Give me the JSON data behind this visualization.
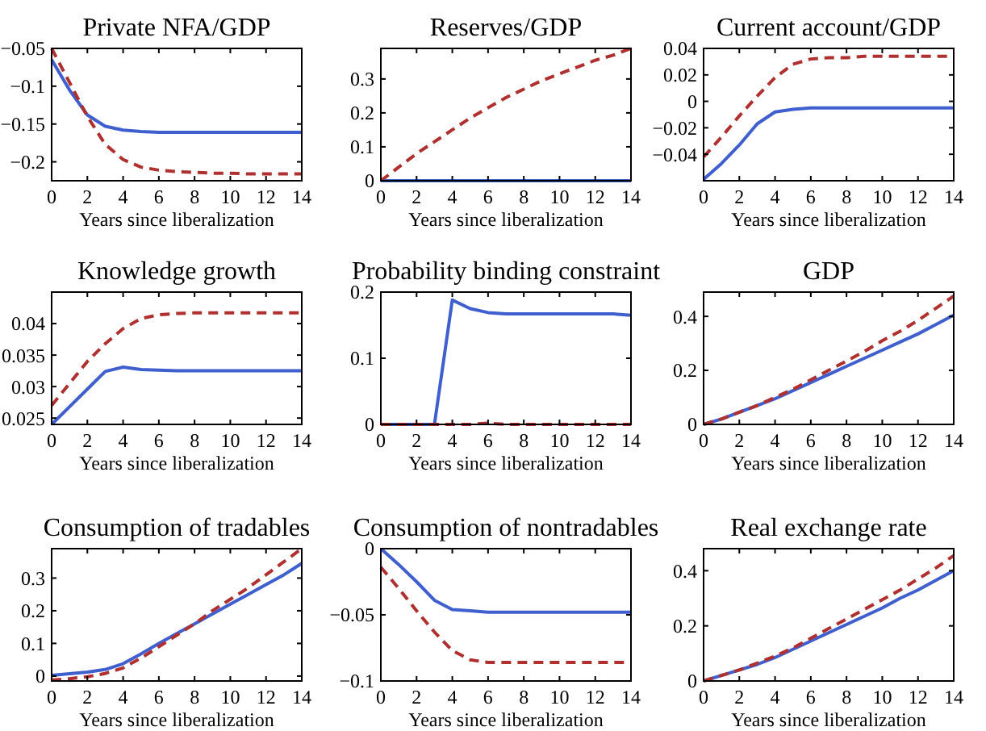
{
  "chart_data": [
    {
      "type": "line",
      "title": "Private NFA/GDP",
      "xlabel": "Years since liberalization",
      "x": [
        0,
        1,
        2,
        3,
        4,
        5,
        6,
        7,
        8,
        9,
        10,
        11,
        12,
        13,
        14
      ],
      "xlim": [
        0,
        14
      ],
      "xticks": [
        0,
        2,
        4,
        6,
        8,
        10,
        12,
        14
      ],
      "ylim": [
        -0.225,
        -0.05
      ],
      "yticks": [
        -0.2,
        -0.15,
        -0.1,
        -0.05
      ],
      "grid": false,
      "series": [
        {
          "color": "#3f5fcf",
          "line_style": "solid",
          "values": [
            -0.065,
            -0.105,
            -0.138,
            -0.153,
            -0.158,
            -0.16,
            -0.161,
            -0.161,
            -0.161,
            -0.161,
            -0.161,
            -0.161,
            -0.161,
            -0.161,
            -0.161
          ]
        },
        {
          "color": "#b03030",
          "line_style": "dashed",
          "values": [
            -0.05,
            -0.095,
            -0.14,
            -0.177,
            -0.197,
            -0.207,
            -0.211,
            -0.213,
            -0.214,
            -0.215,
            -0.215,
            -0.216,
            -0.216,
            -0.216,
            -0.216
          ]
        }
      ]
    },
    {
      "type": "line",
      "title": "Reserves/GDP",
      "xlabel": "Years since liberalization",
      "x": [
        0,
        1,
        2,
        3,
        4,
        5,
        6,
        7,
        8,
        9,
        10,
        11,
        12,
        13,
        14
      ],
      "xlim": [
        0,
        14
      ],
      "xticks": [
        0,
        2,
        4,
        6,
        8,
        10,
        12,
        14
      ],
      "ylim": [
        0,
        0.39
      ],
      "yticks": [
        0,
        0.1,
        0.2,
        0.3
      ],
      "grid": false,
      "series": [
        {
          "color": "#3f5fcf",
          "line_style": "solid",
          "values": [
            0,
            0,
            0,
            0,
            0,
            0,
            0,
            0,
            0,
            0,
            0,
            0,
            0,
            0,
            0
          ]
        },
        {
          "color": "#b03030",
          "line_style": "dashed",
          "values": [
            0,
            0.04,
            0.08,
            0.115,
            0.15,
            0.185,
            0.215,
            0.245,
            0.27,
            0.295,
            0.315,
            0.335,
            0.355,
            0.37,
            0.39
          ]
        }
      ]
    },
    {
      "type": "line",
      "title": "Current account/GDP",
      "xlabel": "Years since liberalization",
      "x": [
        0,
        1,
        2,
        3,
        4,
        5,
        6,
        7,
        8,
        9,
        10,
        11,
        12,
        13,
        14
      ],
      "xlim": [
        0,
        14
      ],
      "xticks": [
        0,
        2,
        4,
        6,
        8,
        10,
        12,
        14
      ],
      "ylim": [
        -0.06,
        0.04
      ],
      "yticks": [
        -0.04,
        -0.02,
        0,
        0.02,
        0.04
      ],
      "grid": false,
      "series": [
        {
          "color": "#3f5fcf",
          "line_style": "solid",
          "values": [
            -0.059,
            -0.047,
            -0.033,
            -0.017,
            -0.008,
            -0.006,
            -0.005,
            -0.005,
            -0.005,
            -0.005,
            -0.005,
            -0.005,
            -0.005,
            -0.005,
            -0.005
          ]
        },
        {
          "color": "#b03030",
          "line_style": "dashed",
          "values": [
            -0.042,
            -0.027,
            -0.011,
            0.004,
            0.018,
            0.028,
            0.032,
            0.033,
            0.033,
            0.034,
            0.034,
            0.034,
            0.034,
            0.034,
            0.034
          ]
        }
      ]
    },
    {
      "type": "line",
      "title": "Knowledge growth",
      "xlabel": "Years since liberalization",
      "x": [
        0,
        1,
        2,
        3,
        4,
        5,
        6,
        7,
        8,
        9,
        10,
        11,
        12,
        13,
        14
      ],
      "xlim": [
        0,
        14
      ],
      "xticks": [
        0,
        2,
        4,
        6,
        8,
        10,
        12,
        14
      ],
      "ylim": [
        0.024,
        0.045
      ],
      "yticks": [
        0.025,
        0.03,
        0.035,
        0.04
      ],
      "grid": false,
      "series": [
        {
          "color": "#3f5fcf",
          "line_style": "solid",
          "values": [
            0.024,
            0.0268,
            0.0296,
            0.0324,
            0.0331,
            0.0327,
            0.0326,
            0.0325,
            0.0325,
            0.0325,
            0.0325,
            0.0325,
            0.0325,
            0.0325,
            0.0325
          ]
        },
        {
          "color": "#b03030",
          "line_style": "dashed",
          "values": [
            0.027,
            0.0305,
            0.034,
            0.0368,
            0.0392,
            0.0408,
            0.0414,
            0.0416,
            0.0417,
            0.0417,
            0.0417,
            0.0417,
            0.0417,
            0.0417,
            0.0417
          ]
        }
      ]
    },
    {
      "type": "line",
      "title": "Probability binding constraint",
      "xlabel": "Years since liberalization",
      "x": [
        0,
        1,
        2,
        3,
        4,
        5,
        6,
        7,
        8,
        9,
        10,
        11,
        12,
        13,
        14
      ],
      "xlim": [
        0,
        14
      ],
      "xticks": [
        0,
        2,
        4,
        6,
        8,
        10,
        12,
        14
      ],
      "ylim": [
        0,
        0.2
      ],
      "yticks": [
        0,
        0.1,
        0.2
      ],
      "grid": false,
      "series": [
        {
          "color": "#3f5fcf",
          "line_style": "solid",
          "values": [
            0,
            0,
            0,
            0,
            0.188,
            0.175,
            0.169,
            0.167,
            0.167,
            0.167,
            0.167,
            0.167,
            0.167,
            0.167,
            0.165
          ]
        },
        {
          "color": "#b03030",
          "line_style": "dashed",
          "values": [
            0,
            0,
            0,
            0,
            0,
            0,
            0.002,
            0,
            0,
            0,
            0,
            0,
            0,
            0,
            0
          ]
        }
      ]
    },
    {
      "type": "line",
      "title": "GDP",
      "xlabel": "Years since liberalization",
      "x": [
        0,
        1,
        2,
        3,
        4,
        5,
        6,
        7,
        8,
        9,
        10,
        11,
        12,
        13,
        14
      ],
      "xlim": [
        0,
        14
      ],
      "xticks": [
        0,
        2,
        4,
        6,
        8,
        10,
        12,
        14
      ],
      "ylim": [
        0,
        0.49
      ],
      "yticks": [
        0,
        0.2,
        0.4
      ],
      "grid": false,
      "series": [
        {
          "color": "#3f5fcf",
          "line_style": "solid",
          "values": [
            0,
            0.02,
            0.045,
            0.07,
            0.095,
            0.125,
            0.155,
            0.185,
            0.215,
            0.245,
            0.275,
            0.305,
            0.335,
            0.37,
            0.405
          ]
        },
        {
          "color": "#b03030",
          "line_style": "dashed",
          "values": [
            0,
            0.02,
            0.045,
            0.07,
            0.1,
            0.13,
            0.165,
            0.2,
            0.235,
            0.27,
            0.31,
            0.345,
            0.385,
            0.43,
            0.475
          ]
        }
      ]
    },
    {
      "type": "line",
      "title": "Consumption of tradables",
      "xlabel": "Years since liberalization",
      "x": [
        0,
        1,
        2,
        3,
        4,
        5,
        6,
        7,
        8,
        9,
        10,
        11,
        12,
        13,
        14
      ],
      "xlim": [
        0,
        14
      ],
      "xticks": [
        0,
        2,
        4,
        6,
        8,
        10,
        12,
        14
      ],
      "ylim": [
        -0.015,
        0.39
      ],
      "yticks": [
        0,
        0.1,
        0.2,
        0.3
      ],
      "grid": false,
      "series": [
        {
          "color": "#3f5fcf",
          "line_style": "solid",
          "values": [
            0.002,
            0.007,
            0.012,
            0.02,
            0.038,
            0.068,
            0.1,
            0.13,
            0.16,
            0.19,
            0.22,
            0.25,
            0.28,
            0.31,
            0.345
          ]
        },
        {
          "color": "#b03030",
          "line_style": "dashed",
          "values": [
            -0.012,
            -0.008,
            -0.002,
            0.008,
            0.025,
            0.055,
            0.09,
            0.125,
            0.16,
            0.2,
            0.235,
            0.27,
            0.31,
            0.35,
            0.39
          ]
        }
      ]
    },
    {
      "type": "line",
      "title": "Consumption of nontradables",
      "xlabel": "Years since liberalization",
      "x": [
        0,
        1,
        2,
        3,
        4,
        5,
        6,
        7,
        8,
        9,
        10,
        11,
        12,
        13,
        14
      ],
      "xlim": [
        0,
        14
      ],
      "xticks": [
        0,
        2,
        4,
        6,
        8,
        10,
        12,
        14
      ],
      "ylim": [
        -0.1,
        0
      ],
      "yticks": [
        -0.1,
        -0.05,
        0
      ],
      "grid": false,
      "series": [
        {
          "color": "#3f5fcf",
          "line_style": "solid",
          "values": [
            0,
            -0.012,
            -0.025,
            -0.039,
            -0.046,
            -0.047,
            -0.048,
            -0.048,
            -0.048,
            -0.048,
            -0.048,
            -0.048,
            -0.048,
            -0.048,
            -0.048
          ]
        },
        {
          "color": "#b03030",
          "line_style": "dashed",
          "values": [
            -0.014,
            -0.03,
            -0.047,
            -0.063,
            -0.077,
            -0.084,
            -0.086,
            -0.086,
            -0.086,
            -0.086,
            -0.086,
            -0.086,
            -0.086,
            -0.086,
            -0.086
          ]
        }
      ]
    },
    {
      "type": "line",
      "title": "Real exchange rate",
      "xlabel": "Years since liberalization",
      "x": [
        0,
        1,
        2,
        3,
        4,
        5,
        6,
        7,
        8,
        9,
        10,
        11,
        12,
        13,
        14
      ],
      "xlim": [
        0,
        14
      ],
      "xticks": [
        0,
        2,
        4,
        6,
        8,
        10,
        12,
        14
      ],
      "ylim": [
        0,
        0.48
      ],
      "yticks": [
        0,
        0.2,
        0.4
      ],
      "grid": false,
      "series": [
        {
          "color": "#3f5fcf",
          "line_style": "solid",
          "values": [
            0,
            0.02,
            0.04,
            0.06,
            0.085,
            0.115,
            0.145,
            0.175,
            0.205,
            0.235,
            0.265,
            0.3,
            0.33,
            0.365,
            0.4
          ]
        },
        {
          "color": "#b03030",
          "line_style": "dashed",
          "values": [
            0,
            0.02,
            0.04,
            0.065,
            0.09,
            0.12,
            0.155,
            0.19,
            0.225,
            0.26,
            0.295,
            0.33,
            0.37,
            0.41,
            0.455
          ]
        }
      ]
    }
  ]
}
